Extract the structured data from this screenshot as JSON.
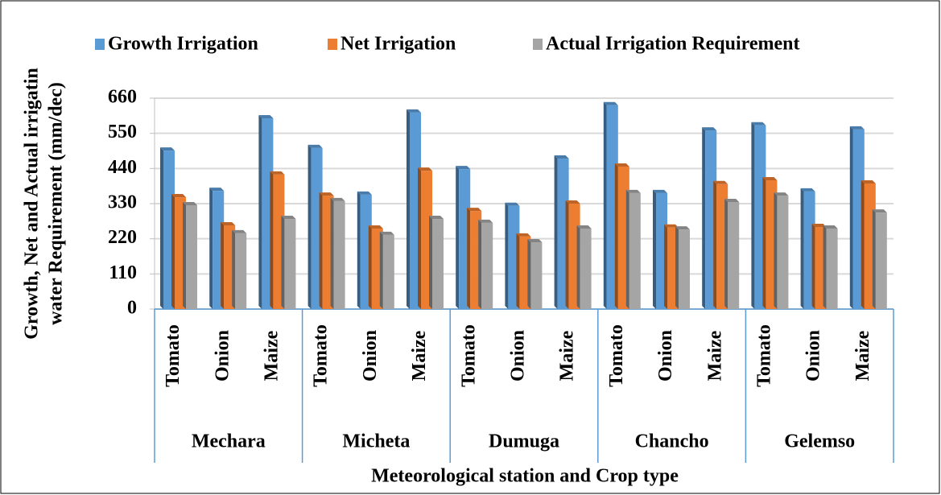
{
  "chart_data": {
    "type": "bar",
    "ylabel": [
      "Growth, Net and Actual irrigatin",
      "water Requirement (mm/dec)"
    ],
    "xlabel": "Meteorological station and Crop type",
    "categories": [
      "Tomato",
      "Onion",
      "Maize",
      "Tomato",
      "Onion",
      "Maize",
      "Tomato",
      "Onion",
      "Maize",
      "Tomato",
      "Onion",
      "Maize",
      "Tomato",
      "Onion",
      "Maize"
    ],
    "groups": [
      "Mechara",
      "Micheta",
      "Dumuga",
      "Chancho",
      "Gelemso"
    ],
    "series": [
      {
        "name": "Growth Irrigation",
        "color": "#5b9bd5",
        "values": [
          496,
          370,
          597,
          504,
          358,
          615,
          438,
          323,
          471,
          638,
          363,
          559,
          575,
          368,
          562
        ]
      },
      {
        "name": "Net Irrigation",
        "color": "#ed7d31",
        "values": [
          350,
          262,
          421,
          355,
          252,
          433,
          307,
          227,
          330,
          446,
          255,
          391,
          403,
          257,
          393
        ]
      },
      {
        "name": "Actual Irrigation Requirement",
        "color": "#a5a5a5",
        "values": [
          325,
          237,
          282,
          338,
          232,
          282,
          270,
          209,
          252,
          363,
          249,
          335,
          355,
          252,
          302
        ]
      }
    ],
    "ylim": [
      0,
      660
    ],
    "yticks": [
      0,
      110,
      220,
      330,
      440,
      550,
      660
    ],
    "grid": true,
    "legend": "top"
  }
}
